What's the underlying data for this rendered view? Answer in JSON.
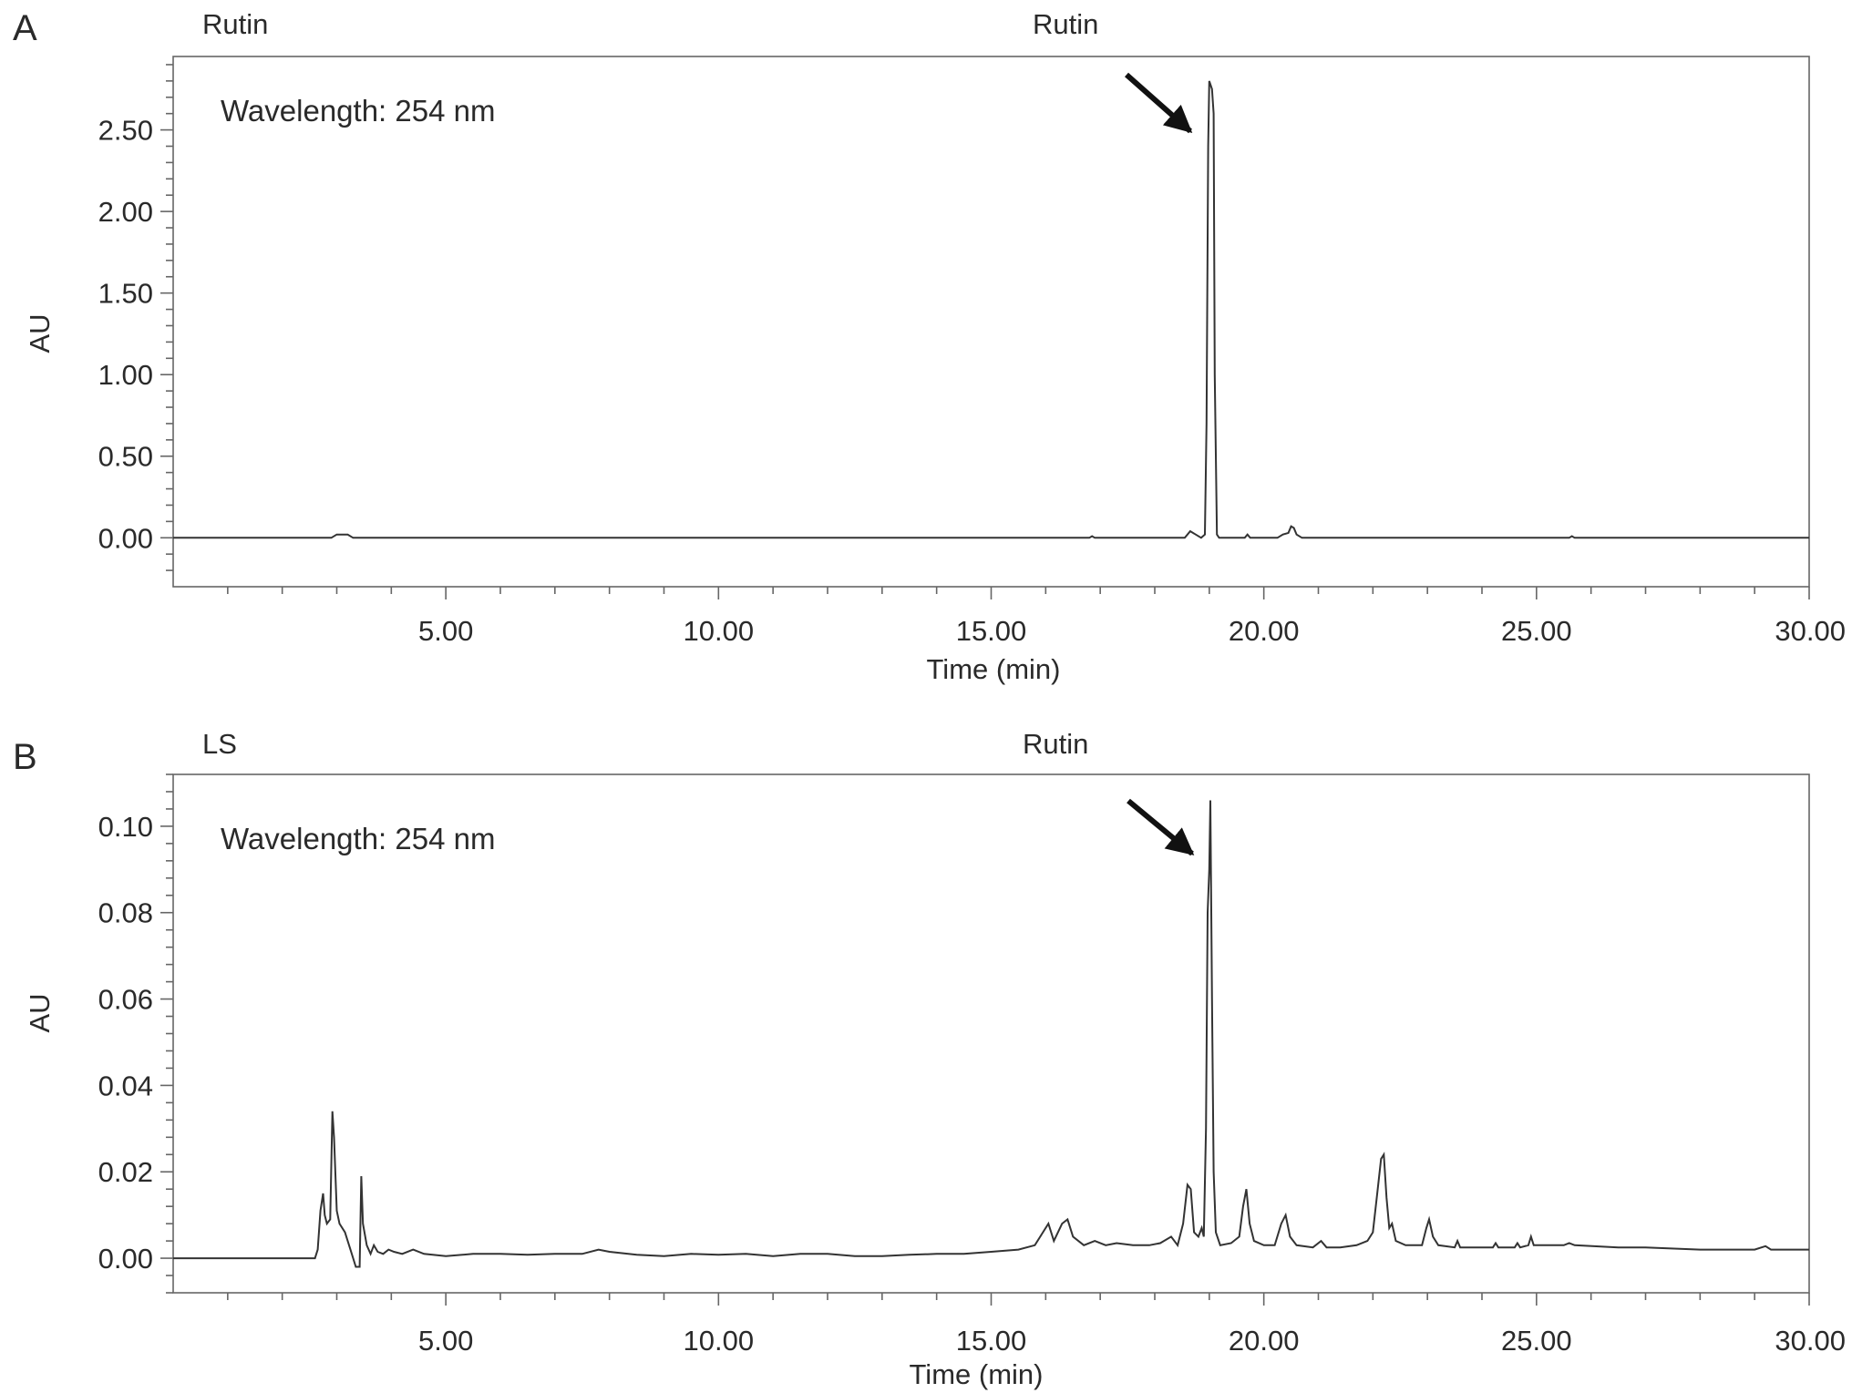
{
  "chart_data": [
    {
      "panel": "A",
      "type": "line",
      "sample_label": "Rutin",
      "peak_label": "Rutin",
      "annotation": "Wavelength: 254 nm",
      "xlabel": "Time (min)",
      "ylabel": "AU",
      "xlim": [
        0,
        30
      ],
      "ylim": [
        -0.3,
        2.95
      ],
      "xticks": [
        5,
        10,
        15,
        20,
        25,
        30
      ],
      "xtick_labels": [
        "5.00",
        "10.00",
        "15.00",
        "20.00",
        "25.00",
        "30.00"
      ],
      "yticks": [
        0,
        0.5,
        1,
        1.5,
        2,
        2.5
      ],
      "ytick_labels": [
        "0.00",
        "0.50",
        "1.00",
        "1.50",
        "2.00",
        "2.50"
      ],
      "arrow_target": [
        19.0,
        2.5
      ],
      "series": [
        {
          "points": [
            [
              0,
              0
            ],
            [
              2.9,
              0
            ],
            [
              3.0,
              0.02
            ],
            [
              3.2,
              0.02
            ],
            [
              3.3,
              0
            ],
            [
              16.8,
              0
            ],
            [
              16.85,
              0.01
            ],
            [
              16.9,
              0
            ],
            [
              18.55,
              0
            ],
            [
              18.65,
              0.04
            ],
            [
              18.75,
              0.02
            ],
            [
              18.85,
              0
            ],
            [
              18.92,
              0.02
            ],
            [
              18.95,
              0.7
            ],
            [
              18.98,
              2.4
            ],
            [
              19.0,
              2.8
            ],
            [
              19.02,
              2.78
            ],
            [
              19.05,
              2.75
            ],
            [
              19.08,
              2.6
            ],
            [
              19.1,
              1.0
            ],
            [
              19.14,
              0.02
            ],
            [
              19.18,
              0
            ],
            [
              19.65,
              0
            ],
            [
              19.7,
              0.02
            ],
            [
              19.75,
              0
            ],
            [
              20.25,
              0
            ],
            [
              20.35,
              0.02
            ],
            [
              20.45,
              0.03
            ],
            [
              20.5,
              0.07
            ],
            [
              20.55,
              0.06
            ],
            [
              20.6,
              0.02
            ],
            [
              20.7,
              0
            ],
            [
              25.6,
              0
            ],
            [
              25.65,
              0.01
            ],
            [
              25.7,
              0
            ],
            [
              30,
              0
            ]
          ]
        }
      ]
    },
    {
      "panel": "B",
      "type": "line",
      "sample_label": "LS",
      "peak_label": "Rutin",
      "annotation": "Wavelength: 254 nm",
      "xlabel": "Time (min)",
      "ylabel": "AU",
      "xlim": [
        0,
        30
      ],
      "ylim": [
        -0.008,
        0.112
      ],
      "xticks": [
        5,
        10,
        15,
        20,
        25,
        30
      ],
      "xtick_labels": [
        "5.00",
        "10.00",
        "15.00",
        "20.00",
        "25.00",
        "30.00"
      ],
      "yticks": [
        0,
        0.02,
        0.04,
        0.06,
        0.08,
        0.1
      ],
      "ytick_labels": [
        "0.00",
        "0.02",
        "0.04",
        "0.06",
        "0.08",
        "0.10"
      ],
      "arrow_target": [
        19.0,
        0.092
      ],
      "series": [
        {
          "points": [
            [
              0,
              0
            ],
            [
              2.6,
              0
            ],
            [
              2.65,
              0.002
            ],
            [
              2.7,
              0.011
            ],
            [
              2.75,
              0.015
            ],
            [
              2.78,
              0.01
            ],
            [
              2.82,
              0.008
            ],
            [
              2.88,
              0.009
            ],
            [
              2.92,
              0.034
            ],
            [
              2.95,
              0.028
            ],
            [
              3.0,
              0.011
            ],
            [
              3.05,
              0.008
            ],
            [
              3.15,
              0.006
            ],
            [
              3.25,
              0.002
            ],
            [
              3.35,
              -0.002
            ],
            [
              3.42,
              -0.002
            ],
            [
              3.45,
              0.019
            ],
            [
              3.48,
              0.008
            ],
            [
              3.55,
              0.003
            ],
            [
              3.62,
              0.001
            ],
            [
              3.68,
              0.003
            ],
            [
              3.75,
              0.0015
            ],
            [
              3.85,
              0.001
            ],
            [
              3.95,
              0.002
            ],
            [
              4.05,
              0.0015
            ],
            [
              4.2,
              0.001
            ],
            [
              4.4,
              0.002
            ],
            [
              4.6,
              0.001
            ],
            [
              5.0,
              0.0005
            ],
            [
              5.5,
              0.001
            ],
            [
              6.0,
              0.001
            ],
            [
              6.5,
              0.0008
            ],
            [
              7.0,
              0.001
            ],
            [
              7.5,
              0.001
            ],
            [
              7.8,
              0.002
            ],
            [
              8.0,
              0.0015
            ],
            [
              8.5,
              0.0008
            ],
            [
              9.0,
              0.0005
            ],
            [
              9.5,
              0.001
            ],
            [
              10.0,
              0.0008
            ],
            [
              10.5,
              0.001
            ],
            [
              11.0,
              0.0005
            ],
            [
              11.5,
              0.001
            ],
            [
              12.0,
              0.001
            ],
            [
              12.5,
              0.0005
            ],
            [
              13.0,
              0.0005
            ],
            [
              13.5,
              0.0008
            ],
            [
              14.0,
              0.001
            ],
            [
              14.5,
              0.001
            ],
            [
              15.0,
              0.0015
            ],
            [
              15.5,
              0.002
            ],
            [
              15.8,
              0.003
            ],
            [
              15.95,
              0.006
            ],
            [
              16.05,
              0.008
            ],
            [
              16.15,
              0.004
            ],
            [
              16.3,
              0.008
            ],
            [
              16.4,
              0.009
            ],
            [
              16.5,
              0.005
            ],
            [
              16.7,
              0.003
            ],
            [
              16.9,
              0.004
            ],
            [
              17.1,
              0.003
            ],
            [
              17.3,
              0.0035
            ],
            [
              17.6,
              0.003
            ],
            [
              17.9,
              0.003
            ],
            [
              18.1,
              0.0035
            ],
            [
              18.3,
              0.005
            ],
            [
              18.42,
              0.003
            ],
            [
              18.52,
              0.008
            ],
            [
              18.6,
              0.017
            ],
            [
              18.66,
              0.016
            ],
            [
              18.72,
              0.006
            ],
            [
              18.8,
              0.005
            ],
            [
              18.86,
              0.007
            ],
            [
              18.9,
              0.005
            ],
            [
              18.94,
              0.03
            ],
            [
              18.97,
              0.08
            ],
            [
              19.0,
              0.09
            ],
            [
              19.02,
              0.106
            ],
            [
              19.05,
              0.06
            ],
            [
              19.08,
              0.02
            ],
            [
              19.12,
              0.006
            ],
            [
              19.2,
              0.003
            ],
            [
              19.4,
              0.0035
            ],
            [
              19.55,
              0.005
            ],
            [
              19.62,
              0.012
            ],
            [
              19.68,
              0.016
            ],
            [
              19.74,
              0.008
            ],
            [
              19.82,
              0.004
            ],
            [
              20.0,
              0.003
            ],
            [
              20.2,
              0.003
            ],
            [
              20.32,
              0.008
            ],
            [
              20.4,
              0.01
            ],
            [
              20.48,
              0.005
            ],
            [
              20.6,
              0.003
            ],
            [
              20.9,
              0.0025
            ],
            [
              21.05,
              0.004
            ],
            [
              21.15,
              0.0025
            ],
            [
              21.4,
              0.0025
            ],
            [
              21.7,
              0.003
            ],
            [
              21.9,
              0.004
            ],
            [
              22.0,
              0.006
            ],
            [
              22.08,
              0.015
            ],
            [
              22.15,
              0.023
            ],
            [
              22.2,
              0.024
            ],
            [
              22.25,
              0.014
            ],
            [
              22.3,
              0.007
            ],
            [
              22.35,
              0.008
            ],
            [
              22.42,
              0.004
            ],
            [
              22.6,
              0.003
            ],
            [
              22.9,
              0.003
            ],
            [
              22.98,
              0.007
            ],
            [
              23.03,
              0.009
            ],
            [
              23.1,
              0.005
            ],
            [
              23.2,
              0.003
            ],
            [
              23.5,
              0.0025
            ],
            [
              23.55,
              0.004
            ],
            [
              23.6,
              0.0025
            ],
            [
              24.2,
              0.0025
            ],
            [
              24.25,
              0.0035
            ],
            [
              24.3,
              0.0025
            ],
            [
              24.6,
              0.0025
            ],
            [
              24.65,
              0.0035
            ],
            [
              24.7,
              0.0025
            ],
            [
              24.85,
              0.003
            ],
            [
              24.9,
              0.005
            ],
            [
              24.95,
              0.003
            ],
            [
              25.5,
              0.003
            ],
            [
              25.6,
              0.0035
            ],
            [
              25.7,
              0.003
            ],
            [
              26.5,
              0.0025
            ],
            [
              27.0,
              0.0025
            ],
            [
              28.0,
              0.002
            ],
            [
              29.0,
              0.002
            ],
            [
              29.2,
              0.0028
            ],
            [
              29.3,
              0.002
            ],
            [
              30,
              0.002
            ]
          ]
        }
      ]
    }
  ]
}
